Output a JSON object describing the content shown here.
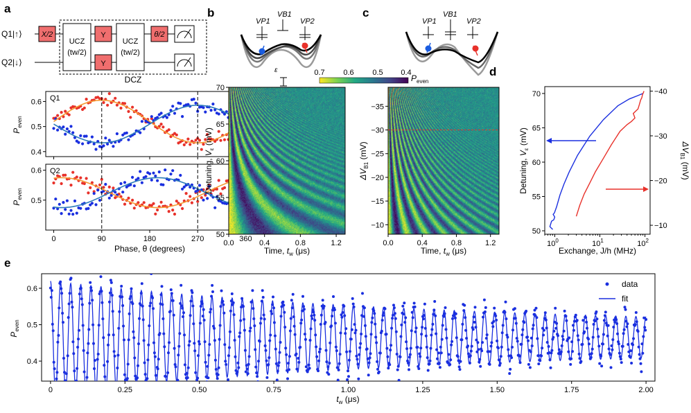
{
  "panels": {
    "a": "a",
    "b": "b",
    "c": "c",
    "d": "d",
    "e": "e"
  },
  "circuit": {
    "q1_label": "Q1|↑⟩",
    "q2_label": "Q2|↓⟩",
    "gate_x2": "X/2",
    "gate_ucz": "UCZ",
    "gate_ucz_arg": "(tw/2)",
    "gate_y": "Y",
    "gate_theta": "θ/2",
    "dcz_label": "DCZ"
  },
  "potentials": {
    "b": {
      "vp1": "VP1",
      "vb1": "VB1",
      "vp2": "VP2",
      "epsilon": "ε"
    },
    "c": {
      "vp1": "VP1",
      "vb1": "VB1",
      "vp2": "VP2"
    }
  },
  "colors": {
    "red": "#e8312a",
    "blue": "#1a2fdf",
    "orange": "#f59a32",
    "steel": "#2b7bb9",
    "gate_fill": "#f06e6e"
  },
  "colorbar": {
    "ticks": [
      "0.7",
      "0.6",
      "0.5",
      "0.4"
    ],
    "label": "P",
    "label_sub": "even"
  },
  "chart_data": [
    {
      "id": "a-Q1",
      "type": "scatter",
      "title": "Q1",
      "xlabel": "",
      "ylabel": "Peven",
      "xlim": [
        -15,
        375
      ],
      "ylim": [
        0.38,
        0.64
      ],
      "xticks": [
        0,
        90,
        180,
        270,
        360
      ],
      "yticks": [
        0.4,
        0.5,
        0.6
      ],
      "vlines": [
        90,
        270
      ],
      "series": [
        {
          "name": "Q1 red data",
          "color": "red",
          "mean": 0.52,
          "amp": 0.085,
          "phase_deg": 90,
          "noise": 0.018
        },
        {
          "name": "Q1 blue data",
          "color": "blue",
          "mean": 0.51,
          "amp": -0.075,
          "phase_deg": 90,
          "noise": 0.02
        }
      ],
      "fits": [
        {
          "name": "Q1 red fit",
          "color": "orange",
          "mean": 0.52,
          "amp": 0.085,
          "phase_deg": 90
        },
        {
          "name": "Q1 blue fit",
          "color": "steel",
          "mean": 0.51,
          "amp": -0.075,
          "phase_deg": 90
        }
      ]
    },
    {
      "id": "a-Q2",
      "type": "scatter",
      "title": "Q2",
      "xlabel": "Phase, θ (degrees)",
      "ylabel": "Peven",
      "xlim": [
        -15,
        375
      ],
      "ylim": [
        0.4,
        0.62
      ],
      "xticks": [
        0,
        90,
        180,
        270,
        360
      ],
      "yticks": [
        0.5,
        0.6
      ],
      "vlines": [
        90,
        270
      ],
      "series": [
        {
          "name": "Q2 red data",
          "color": "red",
          "mean": 0.525,
          "amp": 0.05,
          "phase_deg": 15,
          "noise": 0.018
        },
        {
          "name": "Q2 blue data",
          "color": "blue",
          "mean": 0.525,
          "amp": -0.05,
          "phase_deg": 15,
          "noise": 0.02
        }
      ],
      "fits": [
        {
          "name": "Q2 red fit",
          "color": "orange",
          "mean": 0.525,
          "amp": 0.05,
          "phase_deg": 15
        },
        {
          "name": "Q2 blue fit",
          "color": "steel",
          "mean": 0.525,
          "amp": -0.05,
          "phase_deg": 15
        }
      ]
    },
    {
      "id": "b-map",
      "type": "heatmap",
      "xlabel": "Time, tw (μs)",
      "ylabel": "Detuning, Vε (mV)",
      "xlim": [
        0,
        1.3
      ],
      "ylim": [
        50,
        70
      ],
      "xticks": [
        0.0,
        0.4,
        0.8,
        1.2
      ],
      "yticks": [
        50,
        55,
        60,
        65,
        70
      ],
      "value_range": [
        0.4,
        0.7
      ]
    },
    {
      "id": "c-map",
      "type": "heatmap",
      "xlabel": "Time, tw (μs)",
      "ylabel": "ΔVB1 (mV)",
      "xlim": [
        0,
        1.3
      ],
      "ylim": [
        -8,
        -39
      ],
      "xticks": [
        0.0,
        0.4,
        0.8,
        1.2
      ],
      "yticks": [
        -10,
        -15,
        -20,
        -25,
        -30,
        -35
      ],
      "cut_line": -30,
      "value_range": [
        0.4,
        0.7
      ]
    },
    {
      "id": "d-exchange",
      "type": "line",
      "xlabel": "Exchange, J/h (MHz)",
      "ylabel": "Detuning, Vε (mV)",
      "ylabel_right": "ΔVB1 (mV)",
      "xscale": "log",
      "xlim": [
        0.6,
        130
      ],
      "ylim": [
        49.5,
        71
      ],
      "ylim_right": [
        -8,
        -41
      ],
      "yticks": [
        50,
        55,
        60,
        65,
        70
      ],
      "yticks_right": [
        -10,
        -20,
        -30,
        -40
      ],
      "xticks": [
        "10^0",
        "10^1",
        "10^2"
      ],
      "series": [
        {
          "name": "detuning",
          "color": "blue",
          "J": [
            0.9,
            0.78,
            0.85,
            0.95,
            1.0,
            0.92,
            0.98,
            1.1,
            1.3,
            1.6,
            2.1,
            3.2,
            6,
            12,
            25,
            45,
            70,
            90
          ],
          "V": [
            50.2,
            50.6,
            51.4,
            51.6,
            52.0,
            52.4,
            52.6,
            53.5,
            55.2,
            56.8,
            58.6,
            61.0,
            63.8,
            66.2,
            68.2,
            69.2,
            69.7,
            70.0
          ]
        },
        {
          "name": "barrier",
          "color": "red",
          "J": [
            3,
            3.6,
            4.5,
            6,
            8,
            12,
            18,
            28,
            40,
            50,
            60,
            55,
            70,
            75,
            80,
            85,
            88,
            92,
            95
          ],
          "V": [
            -12.0,
            -14.5,
            -17.0,
            -19.5,
            -22.0,
            -25.0,
            -28.0,
            -31.0,
            -32.5,
            -33.2,
            -34.0,
            -35.0,
            -36.0,
            -37.0,
            -38.0,
            -38.5,
            -39.2,
            -39.6,
            -40.0
          ]
        }
      ]
    },
    {
      "id": "e-trace",
      "type": "scatter",
      "xlabel": "tw (μs)",
      "ylabel": "Peven",
      "xlim": [
        -0.03,
        2.03
      ],
      "ylim": [
        0.345,
        0.64
      ],
      "xticks": [
        0.0,
        0.25,
        0.5,
        0.75,
        1.0,
        1.25,
        1.5,
        1.75,
        2.0
      ],
      "yticks": [
        0.4,
        0.5,
        0.6
      ],
      "model": {
        "offset": 0.465,
        "amp": 0.125,
        "freq_mhz": 29.5,
        "decay_us": 1.3,
        "amp_floor": 0.03,
        "noise": 0.025,
        "n_points": 900
      },
      "legend": [
        "data",
        "fit"
      ]
    }
  ],
  "text": {
    "xticks_phase": [
      "0",
      "90",
      "180",
      "270",
      "360"
    ],
    "yticks_q1": [
      "0.4",
      "0.5",
      "0.6"
    ],
    "yticks_q2": [
      "0.5",
      "0.6"
    ],
    "q1_title": "Q1",
    "q2_title": "Q2",
    "peven_main": "P",
    "peven_sub": "even",
    "phase_axis": "Phase, θ (degrees)",
    "map_xticks": [
      "0.0",
      "0.4",
      "0.8",
      "1.2"
    ],
    "b_yticks": [
      "50",
      "55",
      "60",
      "65",
      "70"
    ],
    "c_yticks": [
      "−10",
      "−15",
      "−20",
      "−25",
      "−30",
      "−35"
    ],
    "time_axis_pre": "Time, ",
    "time_axis_var": "t",
    "time_axis_sub": "w",
    "time_axis_post": " (μs)",
    "detuning_pre": "Detuning, ",
    "detuning_var": "V",
    "detuning_sub": "ε",
    "detuning_post": " (mV)",
    "dvb1_pre": "ΔV",
    "dvb1_sub": "B1",
    "dvb1_post": " (mV)",
    "d_yticks": [
      "50",
      "55",
      "60",
      "65",
      "70"
    ],
    "d_yticks_right": [
      "−10",
      "−20",
      "−30",
      "−40"
    ],
    "d_xtick_base": "10",
    "d_xtick_exps": [
      "0",
      "1",
      "2"
    ],
    "exchange_axis": "Exchange, J/h (MHz)",
    "e_xticks": [
      "0",
      "0.25",
      "0.50",
      "0.75",
      "1.00",
      "1.25",
      "1.50",
      "1.75",
      "2.00"
    ],
    "e_yticks": [
      "0.4",
      "0.5",
      "0.6"
    ],
    "e_xlabel_var": "t",
    "e_xlabel_sub": "w",
    "e_xlabel_post": " (μs)",
    "legend_data": "data",
    "legend_fit": "fit"
  }
}
